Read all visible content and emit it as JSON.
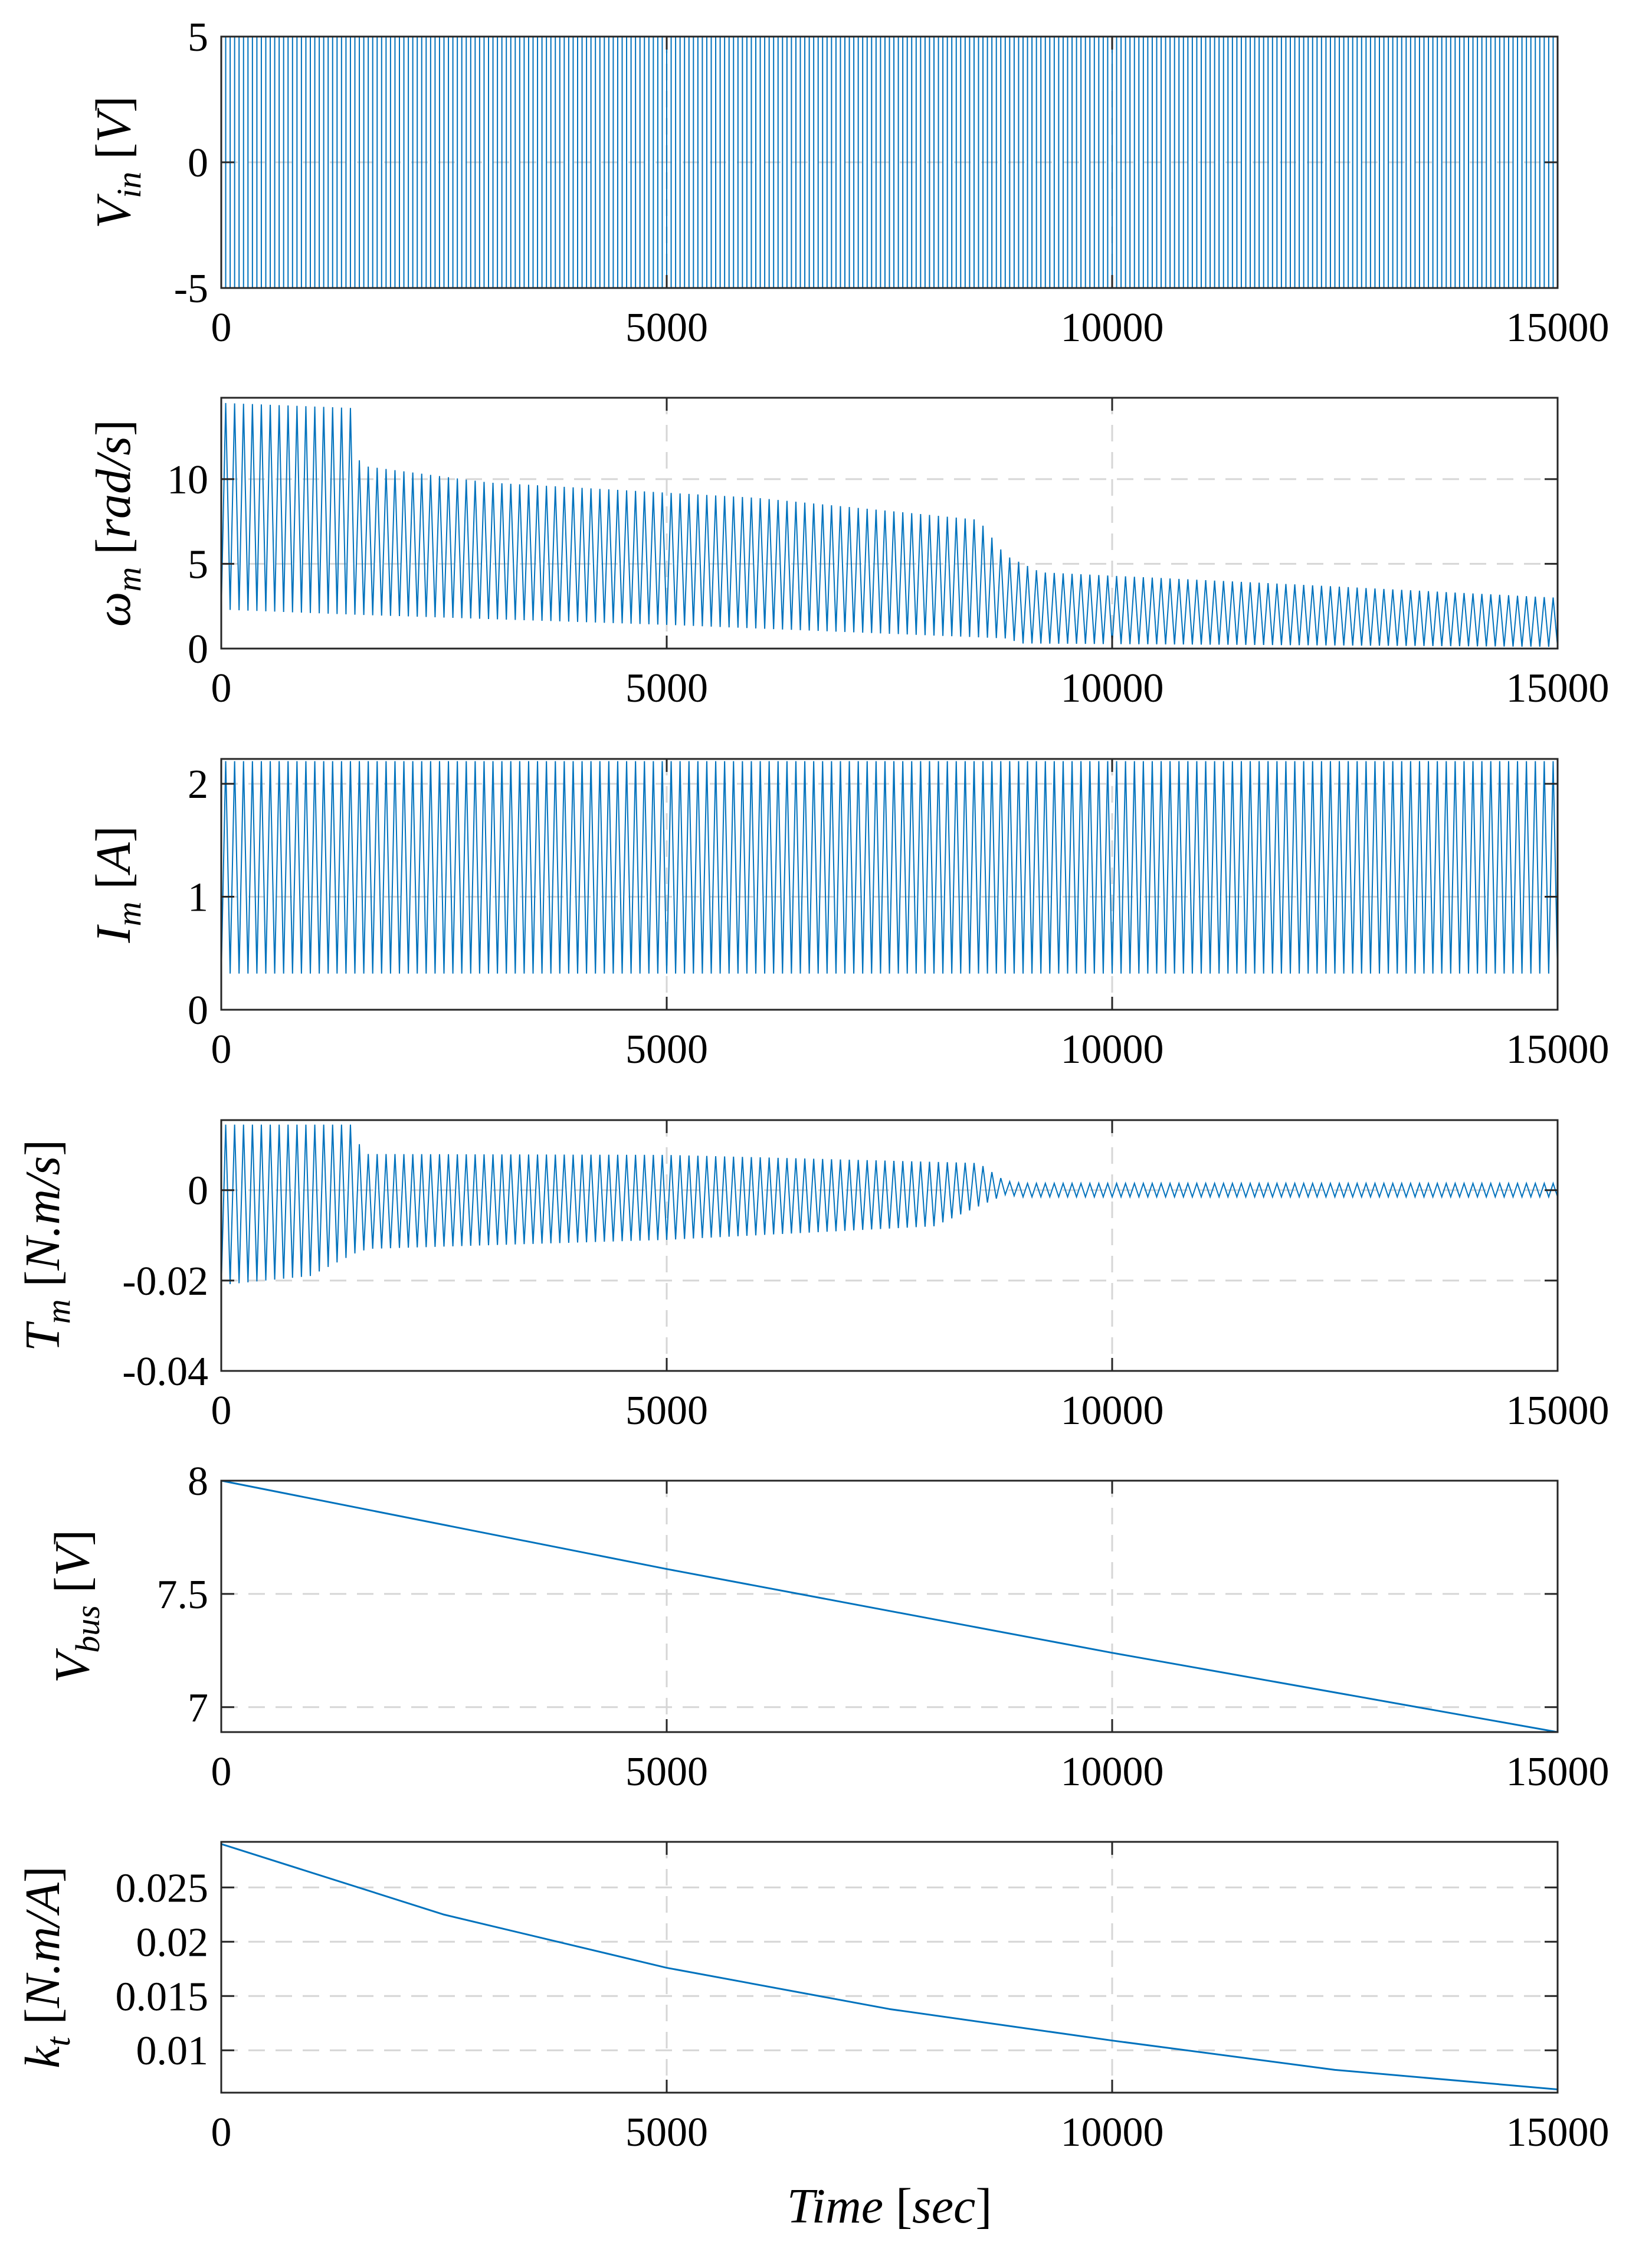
{
  "chart_data": [
    {
      "id": "vin",
      "type": "line",
      "ylabel": {
        "sym": "V",
        "sub": "in",
        "unit": "V"
      },
      "xlim": [
        0,
        15000
      ],
      "ylim": [
        -5,
        5
      ],
      "xticks": [
        0,
        5000,
        10000,
        15000
      ],
      "xtick_labels": [
        "0",
        "5000",
        "10000",
        "15000"
      ],
      "yticks": [
        -5,
        0,
        5
      ],
      "ytick_labels": [
        "-5",
        "0",
        "5"
      ],
      "grid": true,
      "series": [
        {
          "name": "V_in",
          "kind": "square-wave",
          "period": 100,
          "low": -5,
          "high": 5
        }
      ]
    },
    {
      "id": "omega",
      "type": "line",
      "ylabel": {
        "sym": "ω",
        "sub": "m",
        "unit": "rad/s"
      },
      "xlim": [
        0,
        15000
      ],
      "ylim": [
        0,
        14.8
      ],
      "xticks": [
        0,
        5000,
        10000,
        15000
      ],
      "xtick_labels": [
        "0",
        "5000",
        "10000",
        "15000"
      ],
      "yticks": [
        0,
        5,
        10
      ],
      "ytick_labels": [
        "0",
        "5",
        "10"
      ],
      "grid": true,
      "series": [
        {
          "name": "omega_m",
          "kind": "oscillation-envelope",
          "period": 100,
          "upper": [
            [
              0,
              14.5
            ],
            [
              1450,
              14.2
            ],
            [
              1560,
              10.8
            ],
            [
              3000,
              9.8
            ],
            [
              6000,
              8.9
            ],
            [
              8500,
              7.6
            ],
            [
              8800,
              5.5
            ],
            [
              9200,
              4.5
            ],
            [
              12000,
              3.8
            ],
            [
              15000,
              3.0
            ]
          ],
          "lower": [
            [
              0,
              2.3
            ],
            [
              1500,
              2.0
            ],
            [
              5000,
              1.4
            ],
            [
              8800,
              0.6
            ],
            [
              9000,
              0.3
            ],
            [
              15000,
              0.1
            ]
          ]
        }
      ]
    },
    {
      "id": "im",
      "type": "line",
      "ylabel": {
        "sym": "I",
        "sub": "m",
        "unit": "A"
      },
      "xlim": [
        0,
        15000
      ],
      "ylim": [
        0,
        2.22
      ],
      "xticks": [
        0,
        5000,
        10000,
        15000
      ],
      "xtick_labels": [
        "0",
        "5000",
        "10000",
        "15000"
      ],
      "yticks": [
        0,
        1,
        2
      ],
      "ytick_labels": [
        "0",
        "1",
        "2"
      ],
      "grid": true,
      "series": [
        {
          "name": "I_m",
          "kind": "oscillation-envelope",
          "period": 100,
          "upper": [
            [
              0,
              2.2
            ],
            [
              15000,
              2.2
            ]
          ],
          "lower": [
            [
              0,
              0.32
            ],
            [
              15000,
              0.32
            ]
          ]
        }
      ]
    },
    {
      "id": "tm",
      "type": "line",
      "ylabel": {
        "sym": "T",
        "sub": "m",
        "unit": "N.m/s"
      },
      "xlim": [
        0,
        15000
      ],
      "ylim": [
        -0.04,
        0.0155
      ],
      "xticks": [
        0,
        5000,
        10000,
        15000
      ],
      "xtick_labels": [
        "0",
        "5000",
        "10000",
        "15000"
      ],
      "yticks": [
        -0.04,
        -0.02,
        0
      ],
      "ytick_labels": [
        "-0.04",
        "-0.02",
        "0"
      ],
      "grid": true,
      "series": [
        {
          "name": "T_m",
          "kind": "oscillation-envelope",
          "period": 100,
          "upper": [
            [
              0,
              0.0145
            ],
            [
              1450,
              0.0145
            ],
            [
              1600,
              0.008
            ],
            [
              5000,
              0.0078
            ],
            [
              8500,
              0.006
            ],
            [
              8800,
              0.002
            ],
            [
              9000,
              0.0015
            ],
            [
              15000,
              0.0015
            ]
          ],
          "lower": [
            [
              0,
              -0.021
            ],
            [
              1000,
              -0.019
            ],
            [
              1500,
              -0.014
            ],
            [
              1650,
              -0.013
            ],
            [
              5000,
              -0.011
            ],
            [
              8000,
              -0.008
            ],
            [
              8800,
              -0.001
            ],
            [
              9000,
              -0.0015
            ],
            [
              15000,
              -0.0015
            ]
          ]
        }
      ]
    },
    {
      "id": "vbus",
      "type": "line",
      "ylabel": {
        "sym": "V",
        "sub": "bus",
        "unit": "V"
      },
      "xlim": [
        0,
        15000
      ],
      "ylim": [
        6.89,
        8.0
      ],
      "xticks": [
        0,
        5000,
        10000,
        15000
      ],
      "xtick_labels": [
        "0",
        "5000",
        "10000",
        "15000"
      ],
      "yticks": [
        7,
        7.5,
        8
      ],
      "ytick_labels": [
        "7",
        "7.5",
        "8"
      ],
      "grid": true,
      "series": [
        {
          "name": "V_bus",
          "x": [
            0,
            5000,
            10000,
            15000
          ],
          "y": [
            8.0,
            7.61,
            7.24,
            6.89
          ]
        }
      ]
    },
    {
      "id": "kt",
      "type": "line",
      "ylabel": {
        "sym": "k",
        "sub": "t",
        "unit": "N.m/A"
      },
      "xlim": [
        0,
        15000
      ],
      "ylim": [
        0.0061,
        0.0292
      ],
      "xticks": [
        0,
        5000,
        10000,
        15000
      ],
      "xtick_labels": [
        "0",
        "5000",
        "10000",
        "15000"
      ],
      "yticks": [
        0.01,
        0.015,
        0.02,
        0.025
      ],
      "ytick_labels": [
        "0.01",
        "0.015",
        "0.02",
        "0.025"
      ],
      "grid": true,
      "xlabel": {
        "sym": "Time",
        "unit": "sec"
      },
      "series": [
        {
          "name": "k_t",
          "x": [
            0,
            2500,
            5000,
            7500,
            10000,
            12500,
            15000
          ],
          "y": [
            0.029,
            0.0225,
            0.0176,
            0.0138,
            0.0109,
            0.0082,
            0.0064
          ]
        }
      ]
    }
  ]
}
